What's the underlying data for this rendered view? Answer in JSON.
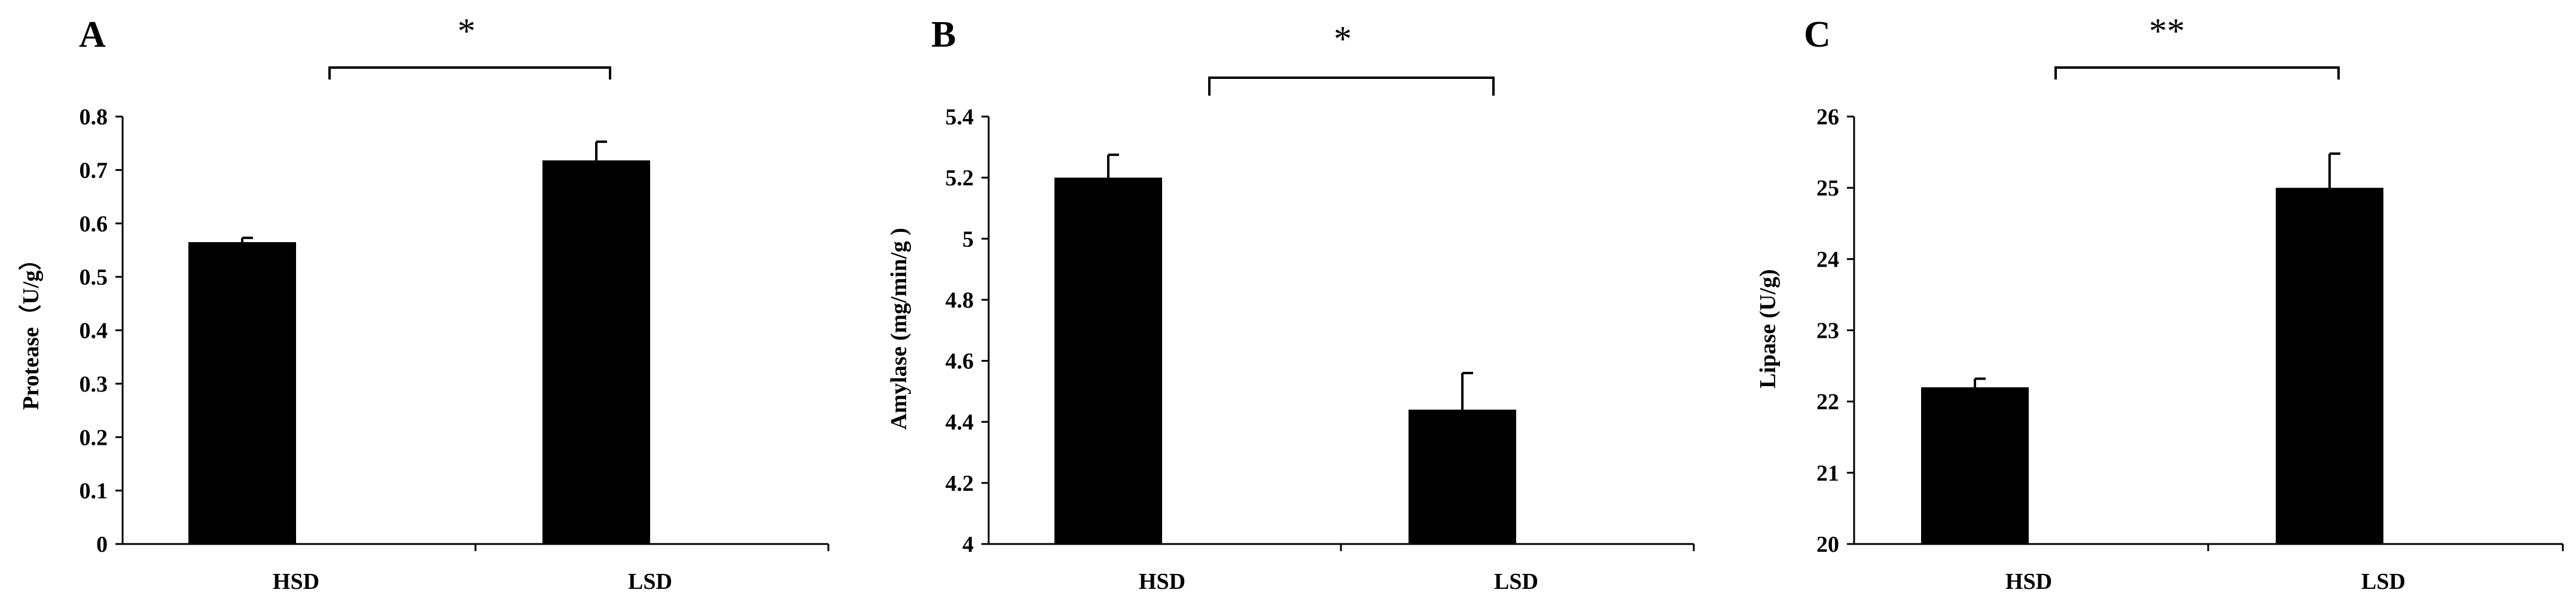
{
  "chart_data": [
    {
      "panel": "A",
      "type": "bar",
      "categories": [
        "HSD",
        "LSD"
      ],
      "values": [
        0.565,
        0.718
      ],
      "errors": [
        0.008,
        0.035
      ],
      "ylabel": "Protease（U/g）",
      "ylim": [
        0,
        0.8
      ],
      "yticks": [
        "0",
        "0.1",
        "0.2",
        "0.3",
        "0.4",
        "0.5",
        "0.6",
        "0.7",
        "0.8"
      ],
      "significance": "*",
      "bar_color": "#000000",
      "grid": false
    },
    {
      "panel": "B",
      "type": "bar",
      "categories": [
        "HSD",
        "LSD"
      ],
      "values": [
        5.2,
        4.44
      ],
      "errors": [
        0.075,
        0.12
      ],
      "ylabel": "Amylase (mg/min/g )",
      "ylim": [
        4,
        5.4
      ],
      "yticks": [
        "4",
        "4.2",
        "4.4",
        "4.6",
        "4.8",
        "5",
        "5.2",
        "5.4"
      ],
      "significance": "*",
      "bar_color": "#000000",
      "grid": false
    },
    {
      "panel": "C",
      "type": "bar",
      "categories": [
        "HSD",
        "LSD"
      ],
      "values": [
        22.2,
        25.0
      ],
      "errors": [
        0.12,
        0.48
      ],
      "ylabel": "Lipase (U/g)",
      "ylim": [
        20,
        26
      ],
      "yticks": [
        "20",
        "21",
        "22",
        "23",
        "24",
        "25",
        "26"
      ],
      "significance": "**",
      "bar_color": "#000000",
      "grid": false
    }
  ]
}
